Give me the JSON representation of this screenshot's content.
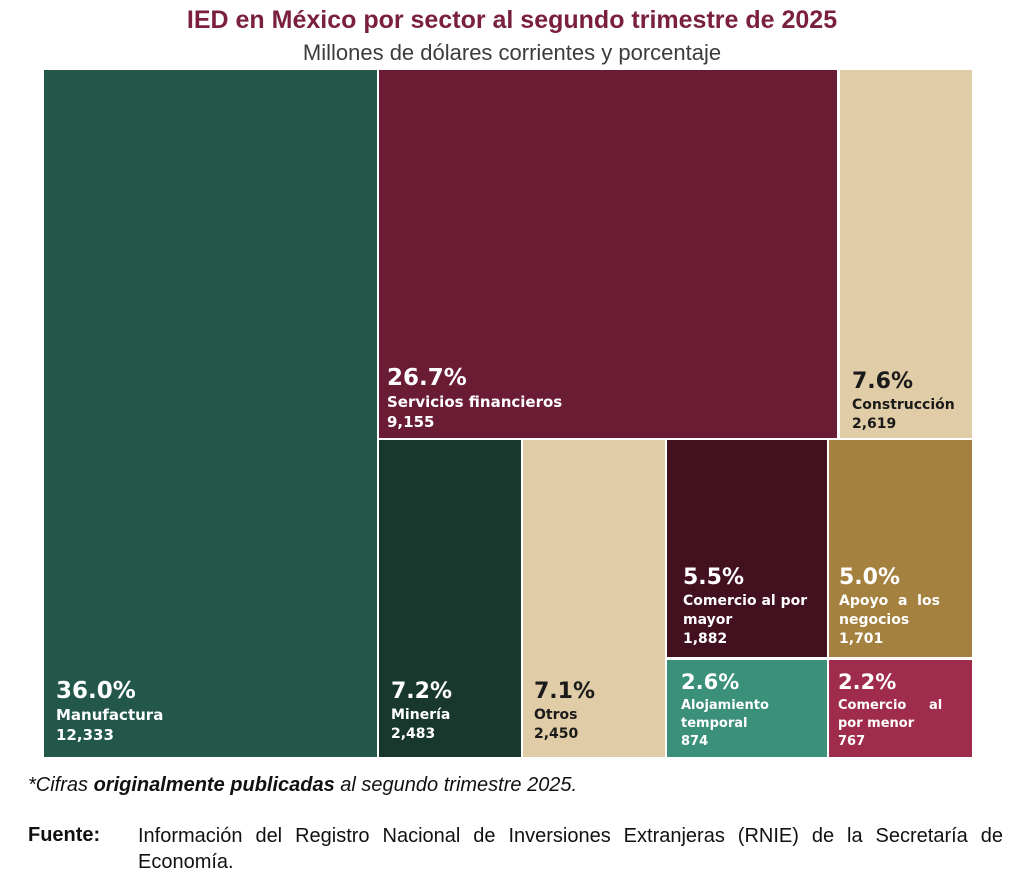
{
  "chart_data": {
    "type": "treemap",
    "title": "IED en México por sector al segundo trimestre de 2025",
    "subtitle": "Millones de dólares corrientes y porcentaje",
    "items": [
      {
        "name": "Manufactura",
        "pct": "36.0%",
        "value": 12333,
        "value_label": "12,333",
        "color": "#22574a",
        "text_color": "#ffffff"
      },
      {
        "name": "Servicios financieros",
        "pct": "26.7%",
        "value": 9155,
        "value_label": "9,155",
        "color": "#6a1c34",
        "text_color": "#ffffff"
      },
      {
        "name": "Construcción",
        "pct": "7.6%",
        "value": 2619,
        "value_label": "2,619",
        "color": "#e0cca6",
        "text_color": "#1a1a1a"
      },
      {
        "name": "Minería",
        "pct": "7.2%",
        "value": 2483,
        "value_label": "2,483",
        "color": "#19382d",
        "text_color": "#ffffff"
      },
      {
        "name": "Otros",
        "pct": "7.1%",
        "value": 2450,
        "value_label": "2,450",
        "color": "#e0cca6",
        "text_color": "#1a1a1a"
      },
      {
        "name": "Comercio al por mayor",
        "pct": "5.5%",
        "value": 1882,
        "value_label": "1,882",
        "color": "#42101f",
        "text_color": "#ffffff"
      },
      {
        "name": "Apoyo a los negocios",
        "pct": "5.0%",
        "value": 1701,
        "value_label": "1,701",
        "color": "#a4813f",
        "text_color": "#ffffff"
      },
      {
        "name": "Alojamiento temporal",
        "pct": "2.6%",
        "value": 874,
        "value_label": "874",
        "color": "#3a9078",
        "text_color": "#ffffff"
      },
      {
        "name": "Comercio al por menor",
        "pct": "2.2%",
        "value": 767,
        "value_label": "767",
        "color": "#9f2c4d",
        "text_color": "#ffffff"
      }
    ]
  },
  "footnote": {
    "prefix": "*Cifras ",
    "bold": "originalmente publicadas",
    "suffix": " al segundo trimestre 2025."
  },
  "source": {
    "label": "Fuente:",
    "text": "Información del Registro Nacional de Inversiones Extranjeras (RNIE) de la Secretaría de Economía."
  }
}
